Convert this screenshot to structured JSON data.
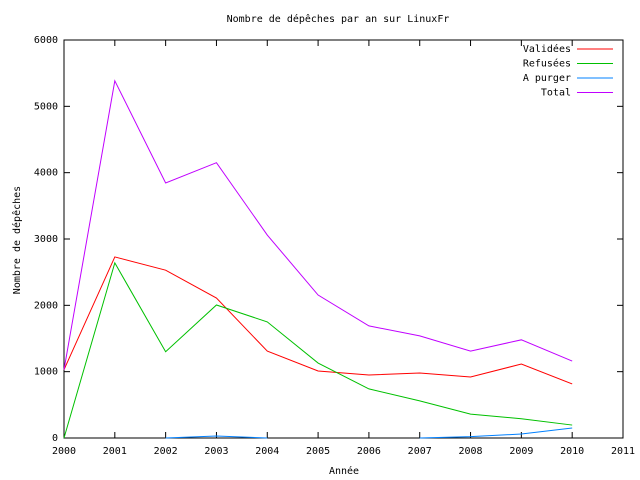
{
  "chart_data": {
    "type": "line",
    "title": "Nombre de dépêches par an sur LinuxFr",
    "x_label": "Année",
    "y_label": "Nombre de dépêches",
    "x": [
      2000,
      2001,
      2002,
      2003,
      2004,
      2005,
      2006,
      2007,
      2008,
      2009,
      2010
    ],
    "series": [
      {
        "name": "Validées",
        "color": "#ff0000",
        "values": [
          1030,
          2730,
          2530,
          2110,
          1310,
          1010,
          950,
          980,
          920,
          1115,
          815
        ]
      },
      {
        "name": "Refusées",
        "color": "#00c000",
        "values": [
          0,
          2640,
          1300,
          2005,
          1750,
          1130,
          740,
          560,
          360,
          290,
          195
        ]
      },
      {
        "name": "A purger",
        "color": "#0080ff",
        "values": [
          null,
          null,
          0,
          30,
          0,
          null,
          null,
          0,
          20,
          60,
          150
        ]
      },
      {
        "name": "Total",
        "color": "#c000ff",
        "values": [
          1030,
          5385,
          3845,
          4150,
          3060,
          2155,
          1690,
          1540,
          1310,
          1480,
          1160
        ]
      }
    ],
    "xlim": [
      2000,
      2011
    ],
    "xticks": [
      2000,
      2001,
      2002,
      2003,
      2004,
      2005,
      2006,
      2007,
      2008,
      2009,
      2010,
      2011
    ],
    "ylim": [
      0,
      6000
    ],
    "yticks": [
      0,
      1000,
      2000,
      3000,
      4000,
      5000,
      6000
    ],
    "grid": false,
    "legend": "top-right"
  }
}
